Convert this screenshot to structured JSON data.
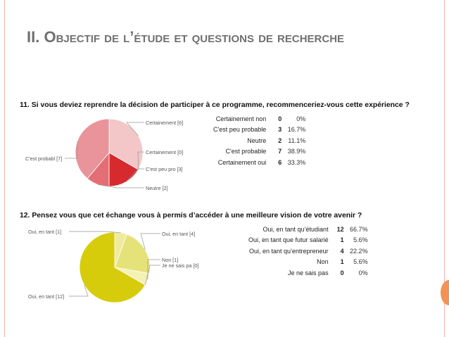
{
  "slide": {
    "title_first": "II. ",
    "title_rest": "Objectif de l’étude et questions de recherche"
  },
  "chart_data": [
    {
      "type": "pie",
      "title": "11. Si vous deviez reprendre la décision de participer à ce programme, recommenceriez-vous cette expérience ?",
      "table": [
        {
          "label": "Certainement non",
          "count": "0",
          "percent": "0%"
        },
        {
          "label": "C'est peu probable",
          "count": "3",
          "percent": "16.7%"
        },
        {
          "label": "Neutre",
          "count": "2",
          "percent": "11.1%"
        },
        {
          "label": "C'est probable",
          "count": "7",
          "percent": "38.9%"
        },
        {
          "label": "Certainement oui",
          "count": "6",
          "percent": "33.3%"
        }
      ],
      "slices": [
        {
          "callout": "Certainement [6]",
          "value": 6,
          "color": "#f3c6c8"
        },
        {
          "callout": "Certainement [0]",
          "value": 0,
          "color": "#e8a0a4"
        },
        {
          "callout": "C'est peu pro [3]",
          "value": 3,
          "color": "#d62a2e"
        },
        {
          "callout": "Neutre [2]",
          "value": 2,
          "color": "#e36e74"
        },
        {
          "callout": "C'est probabl [7]",
          "value": 7,
          "color": "#e8949a"
        }
      ]
    },
    {
      "type": "pie",
      "title": "12. Pensez vous que cet échange vous à permis d’accéder à une meilleure vision de votre avenir ?",
      "table": [
        {
          "label": "Oui, en tant qu’étudiant",
          "count": "12",
          "percent": "66.7%"
        },
        {
          "label": "Oui, en tant que futur salarié",
          "count": "1",
          "percent": "5.6%"
        },
        {
          "label": "Oui, en tant qu’entrepreneur",
          "count": "4",
          "percent": "22.2%"
        },
        {
          "label": "Non",
          "count": "1",
          "percent": "5.6%"
        },
        {
          "label": "Je ne sais pas",
          "count": "0",
          "percent": "0%"
        }
      ],
      "slices": [
        {
          "callout": "Oui, en tant [1]",
          "value": 1,
          "color": "#eeec9c"
        },
        {
          "callout": "Oui, en tant [4]",
          "value": 4,
          "color": "#e6e27a"
        },
        {
          "callout": "Non [1]",
          "value": 1,
          "color": "#f4f1b4"
        },
        {
          "callout": "Je ne sais pa [0]",
          "value": 0,
          "color": "#f2efc0"
        },
        {
          "callout": "Oui, en tant [12]",
          "value": 12,
          "color": "#d7cc0c"
        }
      ]
    }
  ]
}
